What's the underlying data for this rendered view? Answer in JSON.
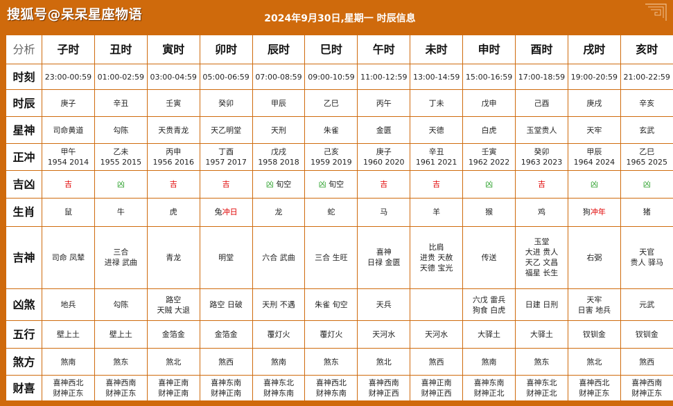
{
  "header": {
    "watermark": "搜狐号@呆呆星座物语",
    "title": "2024年9月30日,星期一 时辰信息"
  },
  "corner_label": "分析",
  "hours": [
    "子时",
    "丑时",
    "寅时",
    "卯时",
    "辰时",
    "巳时",
    "午时",
    "未时",
    "申时",
    "酉时",
    "戌时",
    "亥时"
  ],
  "rows": {
    "shike": {
      "label": "时刻",
      "values": [
        "23:00-00:59",
        "01:00-02:59",
        "03:00-04:59",
        "05:00-06:59",
        "07:00-08:59",
        "09:00-10:59",
        "11:00-12:59",
        "13:00-14:59",
        "15:00-16:59",
        "17:00-18:59",
        "19:00-20:59",
        "21:00-22:59"
      ]
    },
    "shichen": {
      "label": "时辰",
      "values": [
        "庚子",
        "辛丑",
        "壬寅",
        "癸卯",
        "甲辰",
        "乙巳",
        "丙午",
        "丁未",
        "戊申",
        "己酉",
        "庚戌",
        "辛亥"
      ]
    },
    "xingshen": {
      "label": "星神",
      "values": [
        "司命黄道",
        "勾陈",
        "天贵青龙",
        "天乙明堂",
        "天刑",
        "朱雀",
        "金匮",
        "天德",
        "白虎",
        "玉堂贵人",
        "天牢",
        "玄武"
      ]
    },
    "zhengchong": {
      "label": "正冲",
      "values": [
        [
          "甲午",
          "1954 2014"
        ],
        [
          "乙未",
          "1955 2015"
        ],
        [
          "丙申",
          "1956 2016"
        ],
        [
          "丁酉",
          "1957 2017"
        ],
        [
          "戊戌",
          "1958 2018"
        ],
        [
          "己亥",
          "1959 2019"
        ],
        [
          "庚子",
          "1960 2020"
        ],
        [
          "辛丑",
          "1961 2021"
        ],
        [
          "壬寅",
          "1962 2022"
        ],
        [
          "癸卯",
          "1963 2023"
        ],
        [
          "甲辰",
          "1964 2024"
        ],
        [
          "乙巳",
          "1965 2025"
        ]
      ]
    },
    "jixiong": {
      "label": "吉凶",
      "values": [
        {
          "mark": "吉",
          "extra": ""
        },
        {
          "mark": "凶",
          "extra": ""
        },
        {
          "mark": "吉",
          "extra": ""
        },
        {
          "mark": "吉",
          "extra": ""
        },
        {
          "mark": "凶",
          "extra": " 旬空"
        },
        {
          "mark": "凶",
          "extra": " 旬空"
        },
        {
          "mark": "吉",
          "extra": ""
        },
        {
          "mark": "吉",
          "extra": ""
        },
        {
          "mark": "凶",
          "extra": ""
        },
        {
          "mark": "吉",
          "extra": ""
        },
        {
          "mark": "凶",
          "extra": ""
        },
        {
          "mark": "凶",
          "extra": ""
        }
      ]
    },
    "shengxiao": {
      "label": "生肖",
      "values": [
        {
          "animal": "鼠",
          "chong": ""
        },
        {
          "animal": "牛",
          "chong": ""
        },
        {
          "animal": "虎",
          "chong": ""
        },
        {
          "animal": "兔",
          "chong": "冲日"
        },
        {
          "animal": "龙",
          "chong": ""
        },
        {
          "animal": "蛇",
          "chong": ""
        },
        {
          "animal": "马",
          "chong": ""
        },
        {
          "animal": "羊",
          "chong": ""
        },
        {
          "animal": "猴",
          "chong": ""
        },
        {
          "animal": "鸡",
          "chong": ""
        },
        {
          "animal": "狗",
          "chong": "冲年"
        },
        {
          "animal": "猪",
          "chong": ""
        }
      ]
    },
    "jishen": {
      "label": "吉神",
      "values": [
        [
          "司命 凤辇"
        ],
        [
          "三合",
          "进禄 武曲"
        ],
        [
          "青龙"
        ],
        [
          "明堂"
        ],
        [
          "六合 武曲"
        ],
        [
          "三合 生旺"
        ],
        [
          "喜神",
          "日禄 金匮"
        ],
        [
          "比肩",
          "进贵 天赦",
          "天德 宝光"
        ],
        [
          "传送"
        ],
        [
          "玉堂",
          "大进 贵人",
          "天乙 文昌",
          "福星 长生"
        ],
        [
          "右弼"
        ],
        [
          "天官",
          "贵人 驿马"
        ]
      ]
    },
    "xiongsha": {
      "label": "凶煞",
      "values": [
        [
          "地兵"
        ],
        [
          "勾陈"
        ],
        [
          "路空",
          "天贼 大退"
        ],
        [
          "路空 日破"
        ],
        [
          "天刑 不遇"
        ],
        [
          "朱雀 旬空"
        ],
        [
          "天兵"
        ],
        [
          ""
        ],
        [
          "六戊 雷兵",
          "狗食 白虎"
        ],
        [
          "日建 日刑"
        ],
        [
          "天牢",
          "日害 地兵"
        ],
        [
          "元武"
        ]
      ]
    },
    "wuxing": {
      "label": "五行",
      "values": [
        "壁上土",
        "壁上土",
        "金箔金",
        "金箔金",
        "覆灯火",
        "覆灯火",
        "天河水",
        "天河水",
        "大驿土",
        "大驿土",
        "钗钏金",
        "钗钏金"
      ]
    },
    "shafang": {
      "label": "煞方",
      "values": [
        "煞南",
        "煞东",
        "煞北",
        "煞西",
        "煞南",
        "煞东",
        "煞北",
        "煞西",
        "煞南",
        "煞东",
        "煞北",
        "煞西"
      ]
    },
    "caixi": {
      "label": "财喜",
      "values": [
        [
          "喜神西北",
          "财神正东"
        ],
        [
          "喜神西南",
          "财神正东"
        ],
        [
          "喜神正南",
          "财神正南"
        ],
        [
          "喜神东南",
          "财神正南"
        ],
        [
          "喜神东北",
          "财神东南"
        ],
        [
          "喜神西北",
          "财神东南"
        ],
        [
          "喜神西南",
          "财神正西"
        ],
        [
          "喜神正南",
          "财神正西"
        ],
        [
          "喜神东南",
          "财神正北"
        ],
        [
          "喜神东北",
          "财神正北"
        ],
        [
          "喜神西北",
          "财神正东"
        ],
        [
          "喜神西南",
          "财神正东"
        ]
      ]
    }
  },
  "colors": {
    "frame": "#cf6a0c",
    "good": "#e00000",
    "bad": "#2aa02a"
  }
}
